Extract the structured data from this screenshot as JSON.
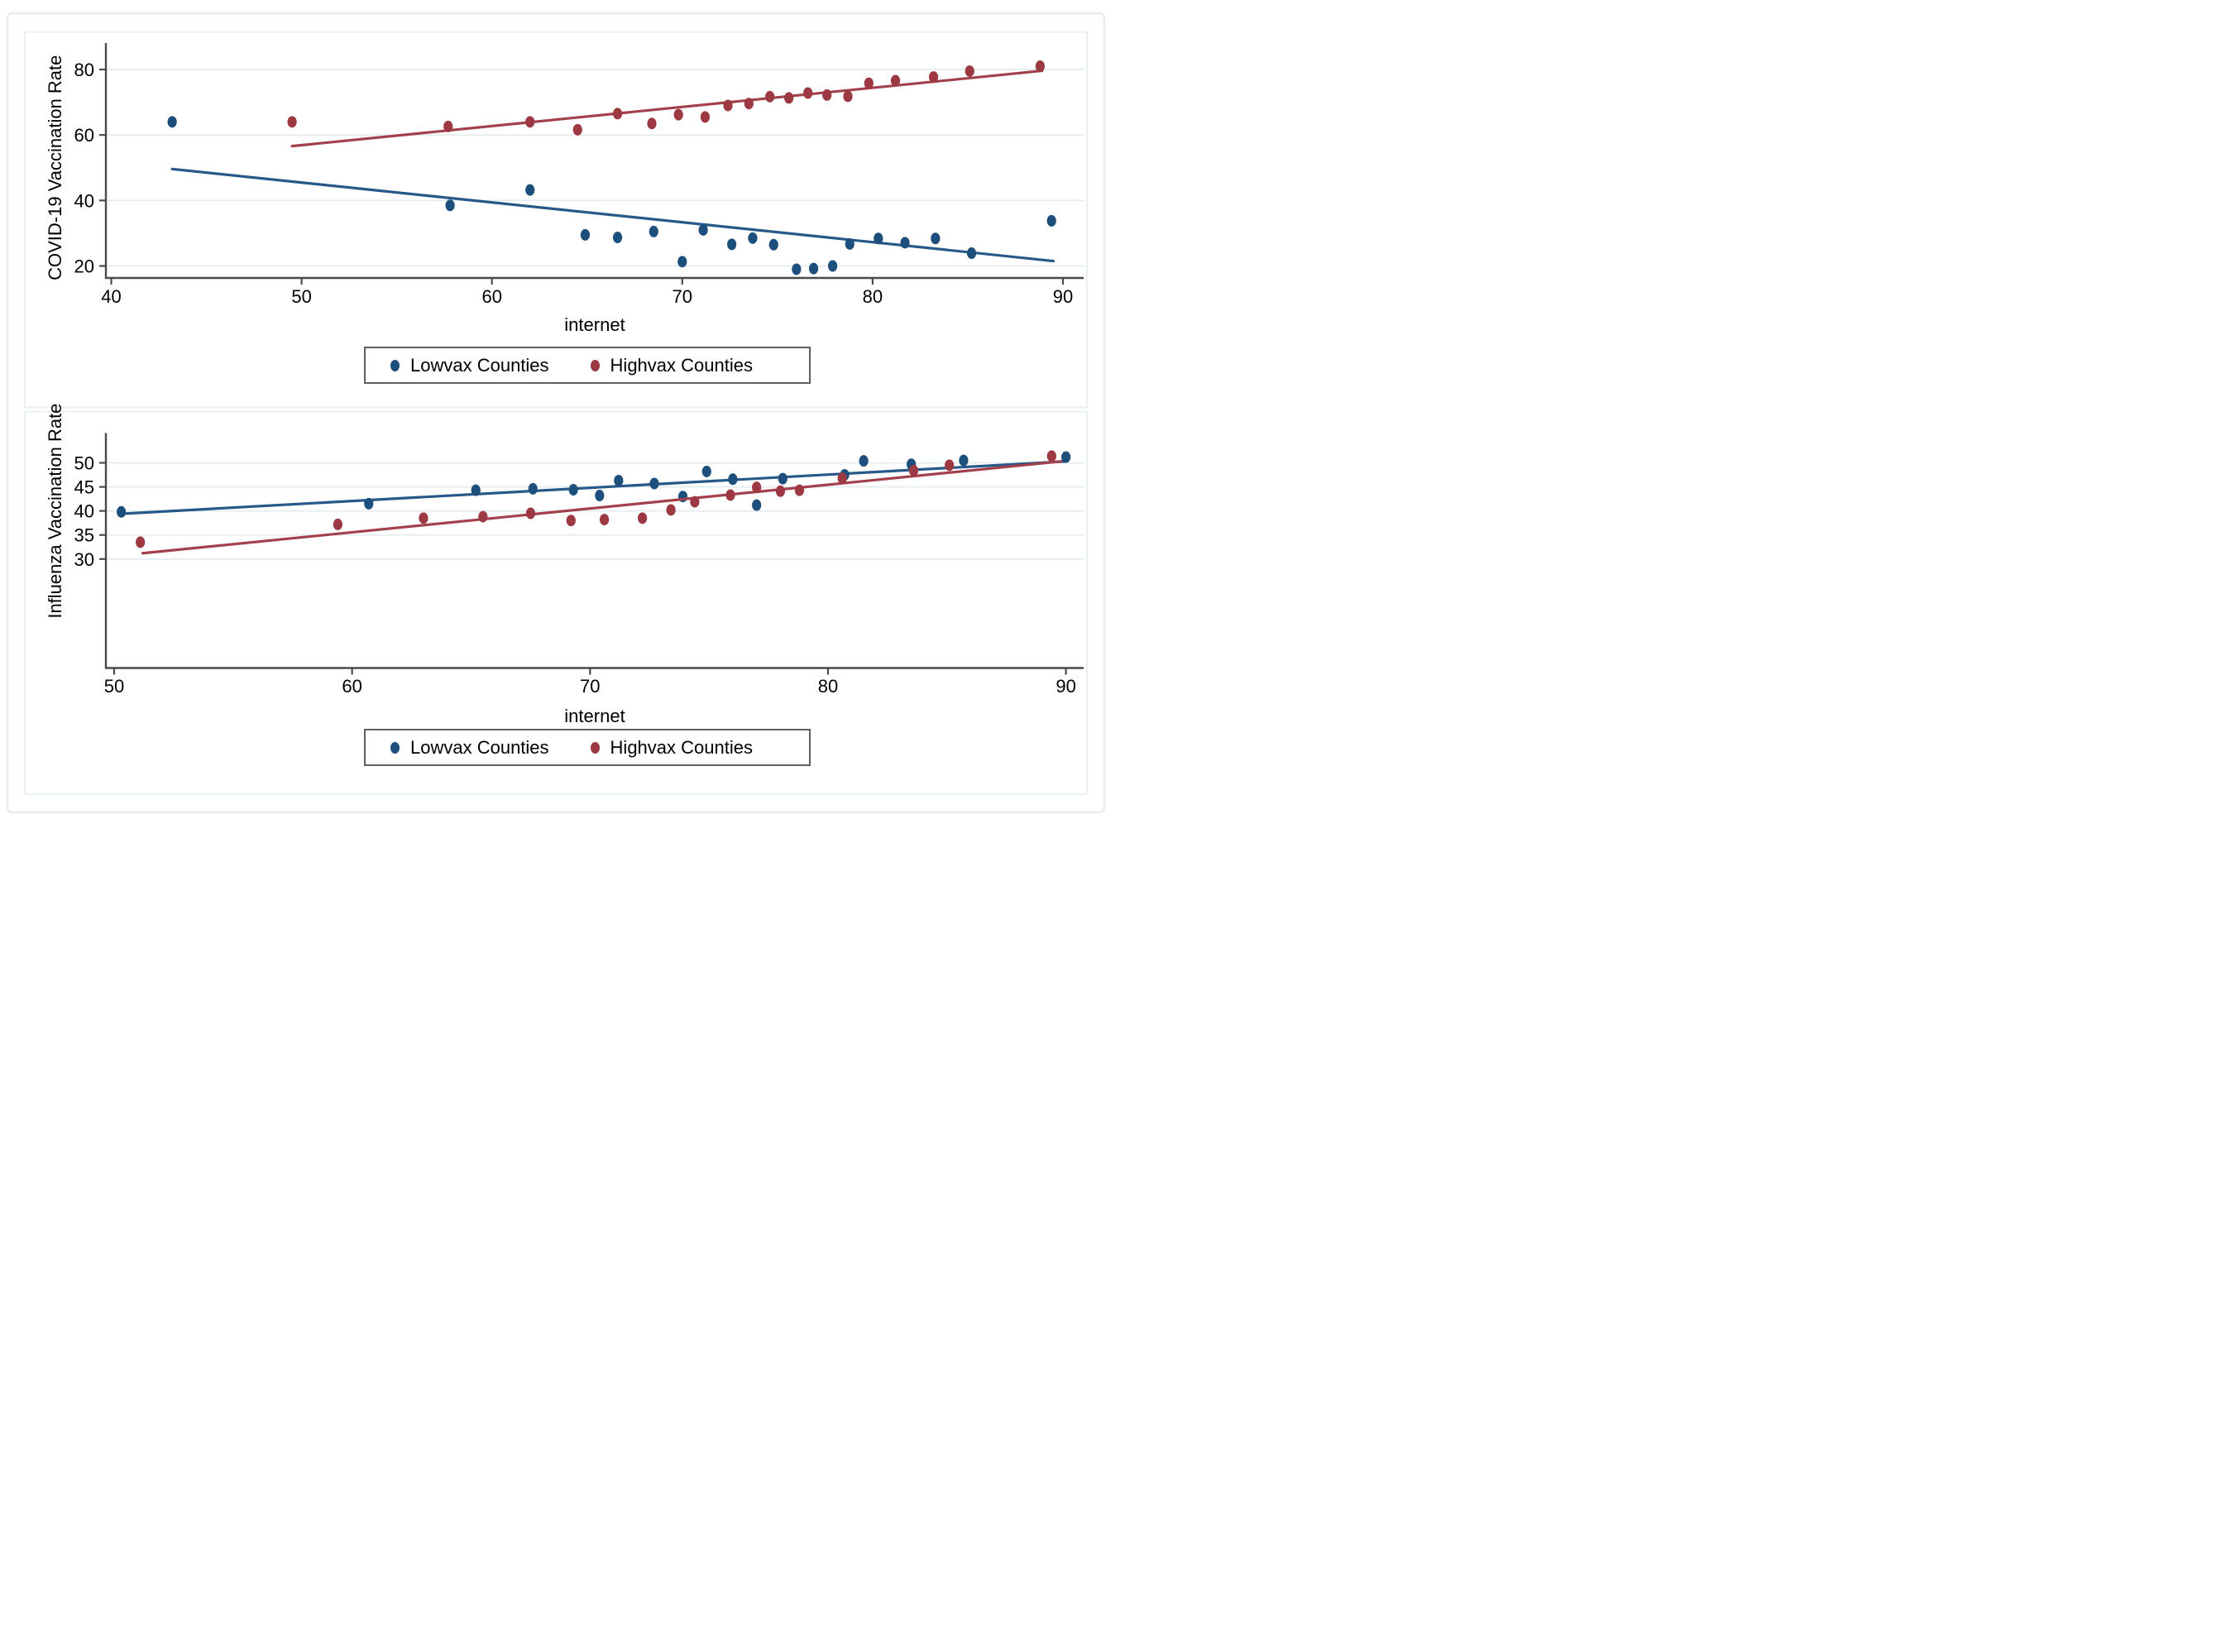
{
  "figure": {
    "background": "#ffffff",
    "outer_border_color": "#e7edf2",
    "panel_border_color": "#e9f0f4",
    "grid_color": "#e2ecee",
    "axis_color": "#4a4a4a",
    "legend_border_color": "#5f5f5f",
    "navy": "#1d4f7c",
    "maroon": "#9d3943"
  },
  "chart_data": [
    {
      "type": "scatter",
      "title": "",
      "xlabel": "internet",
      "ylabel": "COVID-19 Vaccination Rate",
      "x_ticks": [
        40,
        50,
        60,
        70,
        80,
        90
      ],
      "y_ticks": [
        20,
        40,
        60,
        80
      ],
      "xlim": [
        39.7,
        91.1
      ],
      "ylim": [
        16.3,
        88.1
      ],
      "grid": "horizontal",
      "legend_position": "bottom",
      "series": [
        {
          "name": "Lowvax Counties",
          "color": "#1d4f7c",
          "line_color": "#27588a",
          "marker": "circle",
          "points": [
            [
              43.2,
              64.0
            ],
            [
              57.8,
              38.5
            ],
            [
              62.0,
              43.2
            ],
            [
              64.9,
              29.5
            ],
            [
              66.6,
              28.7
            ],
            [
              68.5,
              30.5
            ],
            [
              70.0,
              21.3
            ],
            [
              71.1,
              31.0
            ],
            [
              72.6,
              26.6
            ],
            [
              73.7,
              28.5
            ],
            [
              74.8,
              26.5
            ],
            [
              76.0,
              19.0
            ],
            [
              76.9,
              19.2
            ],
            [
              77.9,
              20.0
            ],
            [
              78.8,
              26.7
            ],
            [
              80.3,
              28.4
            ],
            [
              81.7,
              27.1
            ],
            [
              83.3,
              28.4
            ],
            [
              85.2,
              23.9
            ],
            [
              89.4,
              33.8
            ]
          ],
          "trend_line": [
            [
              43.2,
              49.6
            ],
            [
              89.5,
              21.5
            ]
          ]
        },
        {
          "name": "Highvax Counties",
          "color": "#9d3943",
          "line_color": "#a2404b",
          "marker": "circle",
          "points": [
            [
              49.5,
              64.0
            ],
            [
              57.7,
              62.6
            ],
            [
              62.0,
              64.0
            ],
            [
              64.5,
              61.6
            ],
            [
              66.6,
              66.5
            ],
            [
              68.4,
              63.5
            ],
            [
              69.8,
              66.2
            ],
            [
              71.2,
              65.5
            ],
            [
              72.4,
              69.0
            ],
            [
              73.5,
              69.6
            ],
            [
              74.6,
              71.7
            ],
            [
              75.6,
              71.3
            ],
            [
              76.6,
              72.8
            ],
            [
              77.6,
              72.2
            ],
            [
              78.7,
              71.8
            ],
            [
              79.8,
              75.8
            ],
            [
              81.2,
              76.6
            ],
            [
              83.2,
              77.7
            ],
            [
              85.1,
              79.5
            ],
            [
              88.8,
              81.0
            ]
          ],
          "trend_line": [
            [
              49.5,
              56.6
            ],
            [
              88.9,
              79.6
            ]
          ]
        }
      ]
    },
    {
      "type": "scatter",
      "title": "",
      "xlabel": "internet",
      "ylabel": "Influenza Vaccination Rate",
      "x_ticks": [
        50,
        60,
        70,
        80,
        90
      ],
      "y_ticks": [
        30,
        35,
        40,
        45,
        50
      ],
      "xlim": [
        49.65,
        91.1
      ],
      "ylim": [
        28.0,
        55.4
      ],
      "grid": "horizontal",
      "legend_position": "bottom",
      "series": [
        {
          "name": "Lowvax Counties",
          "color": "#1d4f7c",
          "line_color": "#27588a",
          "marker": "circle",
          "points": [
            [
              50.3,
              39.8
            ],
            [
              60.7,
              41.5
            ],
            [
              65.2,
              44.3
            ],
            [
              67.6,
              44.6
            ],
            [
              69.3,
              44.4
            ],
            [
              70.4,
              43.2
            ],
            [
              71.2,
              46.3
            ],
            [
              72.7,
              45.7
            ],
            [
              73.9,
              43.0
            ],
            [
              74.9,
              48.2
            ],
            [
              76.0,
              46.6
            ],
            [
              77.0,
              41.2
            ],
            [
              78.1,
              46.7
            ],
            [
              80.7,
              47.5
            ],
            [
              81.5,
              50.4
            ],
            [
              83.5,
              49.7
            ],
            [
              85.7,
              50.5
            ],
            [
              90.0,
              51.2
            ]
          ],
          "trend_line": [
            [
              50.3,
              39.4
            ],
            [
              90.0,
              50.3
            ]
          ]
        },
        {
          "name": "Highvax Counties",
          "color": "#9d3943",
          "line_color": "#a2404b",
          "marker": "circle",
          "points": [
            [
              51.1,
              33.5
            ],
            [
              59.4,
              37.2
            ],
            [
              63.0,
              38.5
            ],
            [
              65.5,
              38.8
            ],
            [
              67.5,
              39.5
            ],
            [
              69.2,
              38.0
            ],
            [
              70.6,
              38.2
            ],
            [
              72.2,
              38.5
            ],
            [
              73.4,
              40.2
            ],
            [
              74.4,
              41.9
            ],
            [
              75.9,
              43.3
            ],
            [
              77.0,
              44.9
            ],
            [
              78.0,
              44.1
            ],
            [
              78.8,
              44.3
            ],
            [
              80.6,
              46.8
            ],
            [
              83.6,
              48.4
            ],
            [
              85.1,
              49.5
            ],
            [
              89.4,
              51.4
            ]
          ],
          "trend_line": [
            [
              51.2,
              31.2
            ],
            [
              89.8,
              50.3
            ]
          ]
        }
      ]
    }
  ]
}
